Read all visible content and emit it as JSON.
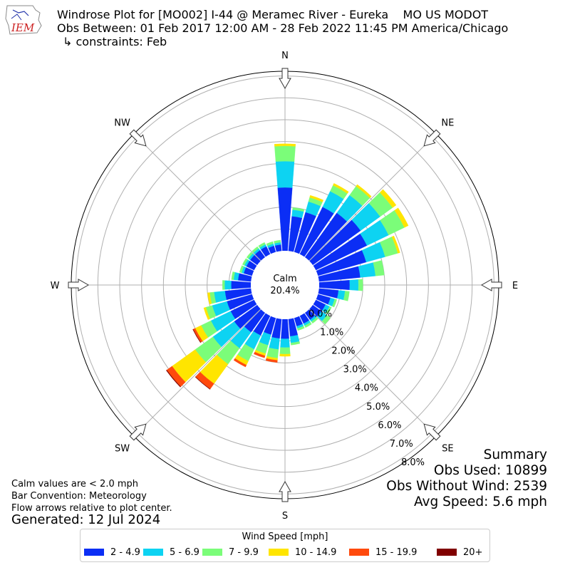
{
  "logo": {
    "text": "IEM"
  },
  "header": {
    "title": "Windrose Plot for [MO002] I-44 @ Meramec River - Eureka    MO US MODOT",
    "obs_between": "Obs Between: 01 Feb 2017 12:00 AM - 28 Feb 2022 11:45 PM America/Chicago",
    "constraints": "↳ constraints: Feb"
  },
  "summary": {
    "heading": "Summary",
    "obs_used": "Obs Used: 10899",
    "obs_without_wind": "Obs Without Wind: 2539",
    "avg_speed": "Avg Speed: 5.6 mph"
  },
  "notes": {
    "calm_note": "Calm values are < 2.0 mph",
    "bar_convention": "Bar Convention: Meteorology",
    "flow_arrows": "Flow arrows relative to plot center."
  },
  "generated": "Generated: 12 Jul 2024",
  "legend": {
    "title": "Wind Speed [mph]",
    "items": [
      {
        "label": "2 - 4.9",
        "color": "#0b2ef5"
      },
      {
        "label": "5 - 6.9",
        "color": "#0dd3f2"
      },
      {
        "label": "7 - 9.9",
        "color": "#7bfd79"
      },
      {
        "label": "10 - 14.9",
        "color": "#ffe500"
      },
      {
        "label": "15 - 19.9",
        "color": "#ff4a0d"
      },
      {
        "label": "20+",
        "color": "#800000"
      }
    ]
  },
  "chart_data": {
    "type": "windrose",
    "calm_label": "Calm",
    "calm_value": "20.4%",
    "directions": [
      "N",
      "NE",
      "E",
      "SE",
      "S",
      "SW",
      "W",
      "NW"
    ],
    "rings": [
      "0.0%",
      "1.0%",
      "2.0%",
      "3.0%",
      "4.0%",
      "5.0%",
      "6.0%",
      "7.0%",
      "8.0%"
    ],
    "rlim": [
      0,
      9
    ],
    "bin_width_deg": 10,
    "series": [
      {
        "name": "2 - 4.9",
        "values": [
          2.9,
          1.6,
          1.9,
          2.4,
          2.5,
          2.7,
          2.6,
          2.3,
          1.9,
          1.4,
          0.9,
          0.6,
          0.5,
          0.5,
          0.4,
          0.4,
          0.4,
          0.8,
          0.9,
          0.9,
          0.8,
          1.0,
          1.1,
          1.3,
          1.2,
          1.2,
          1.2,
          0.9,
          0.6,
          0.4,
          0.4,
          0.4,
          0.4,
          0.4,
          0.3,
          0.3
        ]
      },
      {
        "name": "5 - 6.9",
        "values": [
          1.2,
          0.3,
          0.5,
          0.8,
          1.0,
          1.1,
          1.1,
          0.9,
          0.7,
          0.4,
          0.3,
          0.2,
          0.2,
          0.3,
          0.1,
          0.1,
          0.1,
          0.3,
          0.4,
          0.5,
          0.5,
          0.7,
          0.9,
          1.2,
          1.0,
          0.7,
          0.5,
          0.3,
          0.2,
          0.1,
          0.1,
          0.1,
          0.1,
          0.1,
          0.1,
          0.1
        ]
      },
      {
        "name": "7 - 9.9",
        "values": [
          0.7,
          0.1,
          0.2,
          0.3,
          0.5,
          0.7,
          0.8,
          0.6,
          0.4,
          0.2,
          0.2,
          0.1,
          0.1,
          0.2,
          0.1,
          0.1,
          0.1,
          0.1,
          0.3,
          0.4,
          0.4,
          0.6,
          0.9,
          1.0,
          0.5,
          0.3,
          0.2,
          0.1,
          0.1,
          0.1,
          0.1,
          0.1,
          0.1,
          0.1,
          0.1,
          0.1
        ]
      },
      {
        "name": "10 - 14.9",
        "values": [
          0.1,
          0.0,
          0.1,
          0.1,
          0.1,
          0.2,
          0.2,
          0.1,
          0.0,
          0.0,
          0.0,
          0.0,
          0.0,
          0.0,
          0.0,
          0.0,
          0.0,
          0.0,
          0.1,
          0.1,
          0.1,
          0.2,
          1.1,
          1.3,
          0.3,
          0.1,
          0.1,
          0.0,
          0.0,
          0.0,
          0.0,
          0.0,
          0.0,
          0.0,
          0.0,
          0.0
        ]
      },
      {
        "name": "15 - 19.9",
        "values": [
          0.0,
          0.0,
          0.0,
          0.0,
          0.0,
          0.0,
          0.0,
          0.0,
          0.0,
          0.0,
          0.0,
          0.0,
          0.0,
          0.0,
          0.0,
          0.0,
          0.0,
          0.0,
          0.0,
          0.1,
          0.1,
          0.1,
          0.3,
          0.3,
          0.1,
          0.0,
          0.0,
          0.0,
          0.0,
          0.0,
          0.0,
          0.0,
          0.0,
          0.0,
          0.0,
          0.0
        ]
      },
      {
        "name": "20+",
        "values": [
          0.0,
          0.0,
          0.0,
          0.0,
          0.0,
          0.0,
          0.0,
          0.0,
          0.0,
          0.0,
          0.0,
          0.0,
          0.0,
          0.0,
          0.0,
          0.0,
          0.0,
          0.0,
          0.0,
          0.0,
          0.0,
          0.0,
          0.02,
          0.03,
          0.02,
          0.0,
          0.0,
          0.0,
          0.0,
          0.0,
          0.0,
          0.0,
          0.0,
          0.0,
          0.0,
          0.0
        ]
      }
    ]
  }
}
